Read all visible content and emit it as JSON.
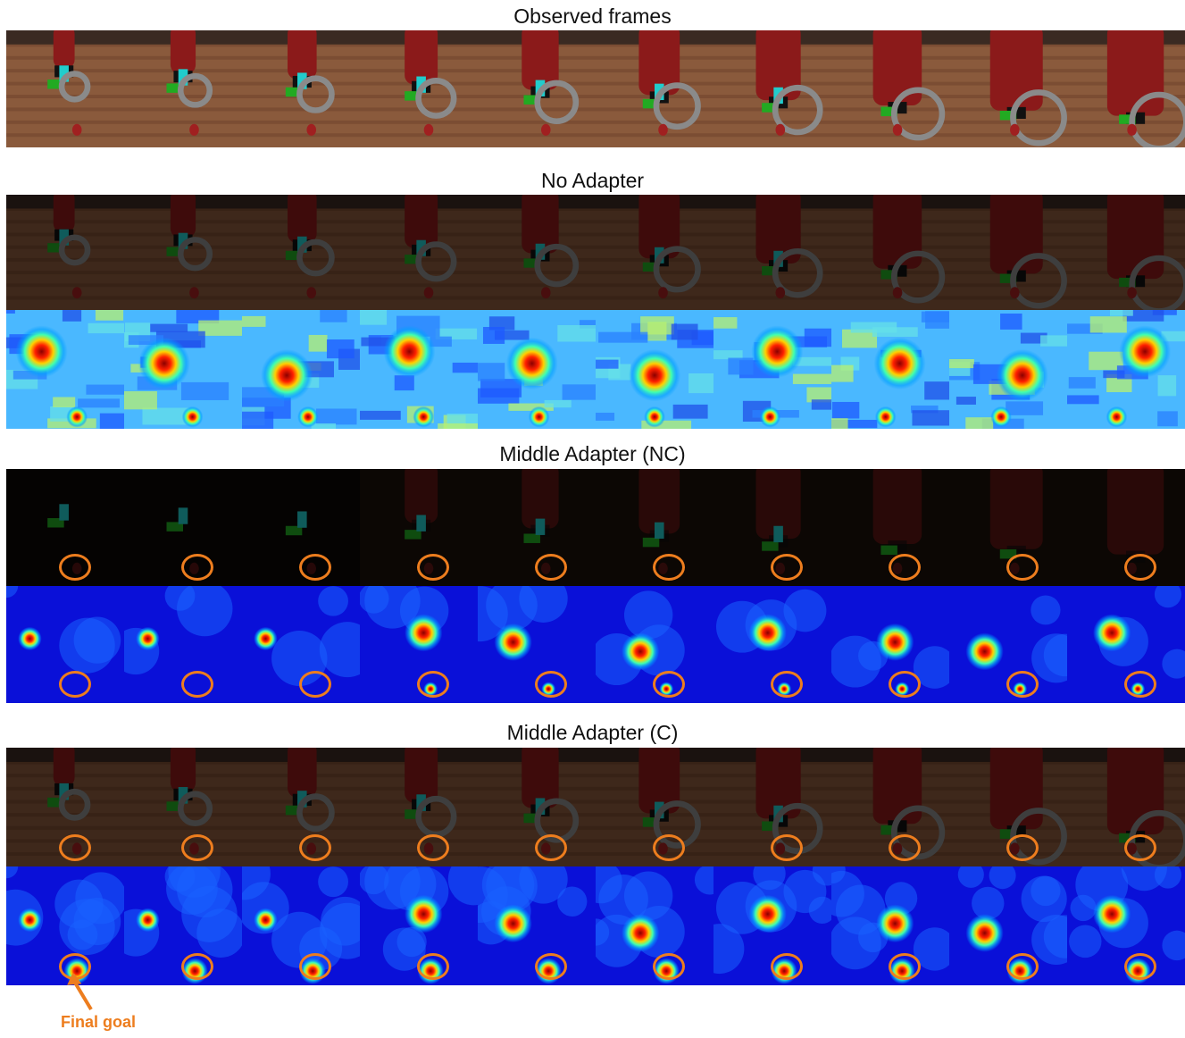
{
  "sections": [
    {
      "title": "Observed frames",
      "rows": [
        {
          "kind": "frames",
          "rings": false
        }
      ]
    },
    {
      "title": "No Adapter",
      "rows": [
        {
          "kind": "dim-frames",
          "rings": false
        },
        {
          "kind": "heatmap-jet",
          "rings": false
        }
      ]
    },
    {
      "title": "Middle Adapter (NC)",
      "rows": [
        {
          "kind": "masked-frames",
          "rings": true
        },
        {
          "kind": "heatmap-blue",
          "rings": true
        }
      ]
    },
    {
      "title": "Middle Adapter (C)",
      "rows": [
        {
          "kind": "dim-frames",
          "rings": true
        },
        {
          "kind": "heatmap-blue-goal",
          "rings": true
        }
      ]
    }
  ],
  "frames_per_row": 10,
  "annotation": {
    "label": "Final goal",
    "color": "#ed7d1e"
  },
  "colors": {
    "ring": "#ed7d1e",
    "robot": "#8b1a1a",
    "table": "#8a5a3c",
    "heat_low": "#0a10d8"
  }
}
